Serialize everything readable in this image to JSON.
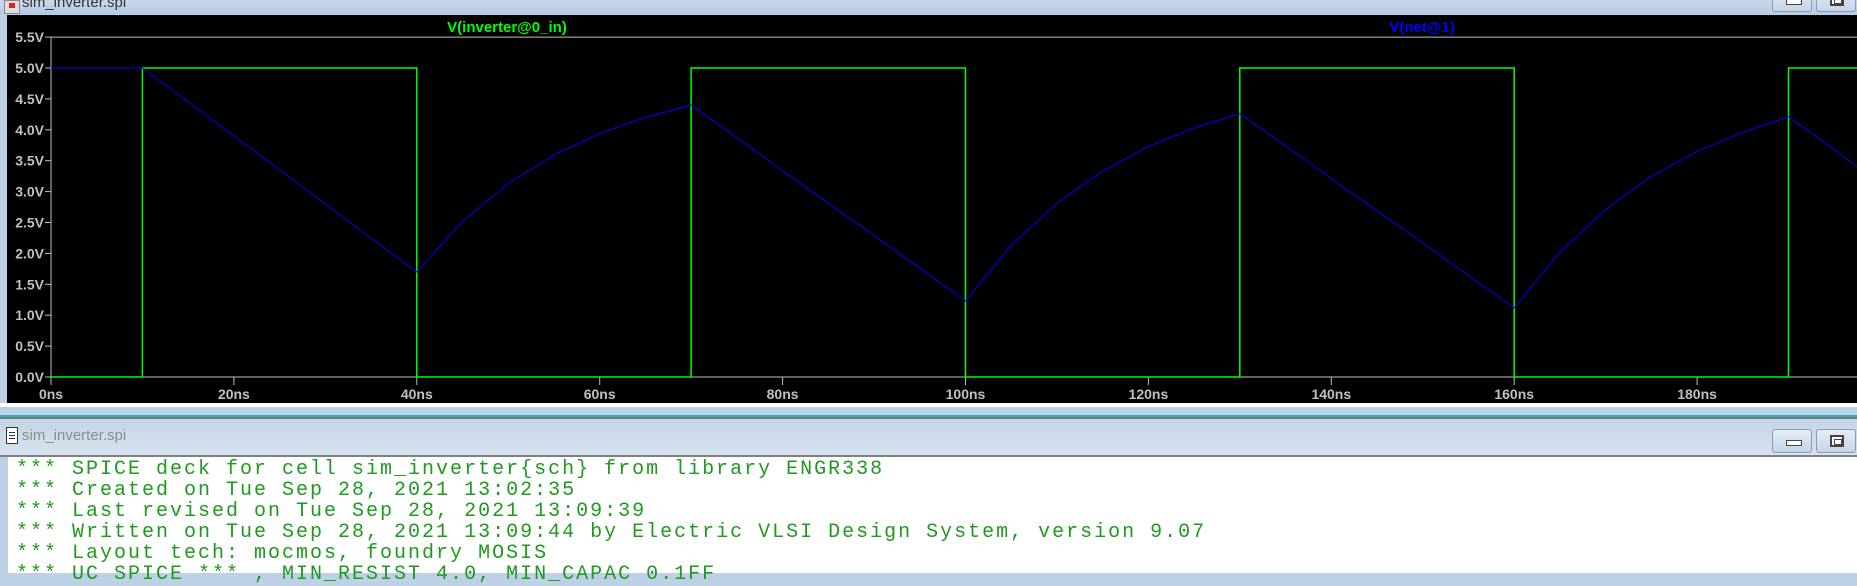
{
  "top_window": {
    "title": "sim_inverter.spi"
  },
  "plot": {
    "background": "#000000",
    "legend": [
      {
        "label": "V(inverter@0_in)",
        "color": "#00ff00"
      },
      {
        "label": "V(net@1)",
        "color": "#0000ff"
      }
    ]
  },
  "chart_data": {
    "type": "line",
    "xlabel": "",
    "ylabel": "",
    "xlim": [
      0,
      197.5
    ],
    "ylim": [
      0,
      5.5
    ],
    "grid": false,
    "legend_position": "top",
    "x_ticks": [
      "0ns",
      "20ns",
      "40ns",
      "60ns",
      "80ns",
      "100ns",
      "120ns",
      "140ns",
      "160ns",
      "180ns"
    ],
    "x_tick_values": [
      0,
      20,
      40,
      60,
      80,
      100,
      120,
      140,
      160,
      180
    ],
    "y_ticks": [
      "0.0V",
      "0.5V",
      "1.0V",
      "1.5V",
      "2.0V",
      "2.5V",
      "3.0V",
      "3.5V",
      "4.0V",
      "4.5V",
      "5.0V",
      "5.5V"
    ],
    "y_tick_values": [
      0,
      0.5,
      1,
      1.5,
      2,
      2.5,
      3,
      3.5,
      4,
      4.5,
      5,
      5.5
    ],
    "series": [
      {
        "name": "V(inverter@0_in)",
        "color": "#00ff00",
        "x": [
          0,
          10,
          10,
          40,
          40,
          70,
          70,
          100,
          100,
          130,
          130,
          160,
          160,
          190,
          190,
          197.5
        ],
        "y": [
          0,
          0,
          5,
          5,
          0,
          0,
          5,
          5,
          0,
          0,
          5,
          5,
          0,
          0,
          5,
          5
        ]
      },
      {
        "name": "V(net@1)",
        "color": "#0000ff",
        "x": [
          0,
          10,
          15,
          20,
          25,
          30,
          35,
          40,
          45,
          50,
          55,
          60,
          65,
          70,
          75,
          80,
          85,
          90,
          95,
          100,
          105,
          110,
          115,
          120,
          125,
          130,
          135,
          140,
          145,
          150,
          155,
          160,
          165,
          170,
          175,
          180,
          185,
          190,
          195,
          197.5
        ],
        "y": [
          5,
          5,
          4.45,
          3.9,
          3.35,
          2.8,
          2.25,
          1.7,
          2.52,
          3.13,
          3.59,
          3.94,
          4.2,
          4.4,
          3.87,
          3.34,
          2.81,
          2.29,
          1.76,
          1.23,
          2.13,
          2.81,
          3.33,
          3.73,
          4.03,
          4.26,
          3.74,
          3.21,
          2.69,
          2.17,
          1.64,
          1.12,
          2.02,
          2.71,
          3.25,
          3.65,
          3.96,
          4.21,
          3.68,
          3.4
        ]
      }
    ]
  },
  "console_window": {
    "title": "sim_inverter.spi",
    "lines": [
      "*** SPICE deck for cell sim_inverter{sch} from library ENGR338",
      "*** Created on Tue Sep 28, 2021 13:02:35",
      "*** Last revised on Tue Sep 28, 2021 13:09:39",
      "*** Written on Tue Sep 28, 2021 13:09:44 by Electric VLSI Design System, version 9.07",
      "*** Layout tech: mocmos, foundry MOSIS",
      "*** UC SPICE *** , MIN_RESIST 4.0, MIN_CAPAC 0.1FF"
    ],
    "text_color": "#1e9a1e"
  }
}
